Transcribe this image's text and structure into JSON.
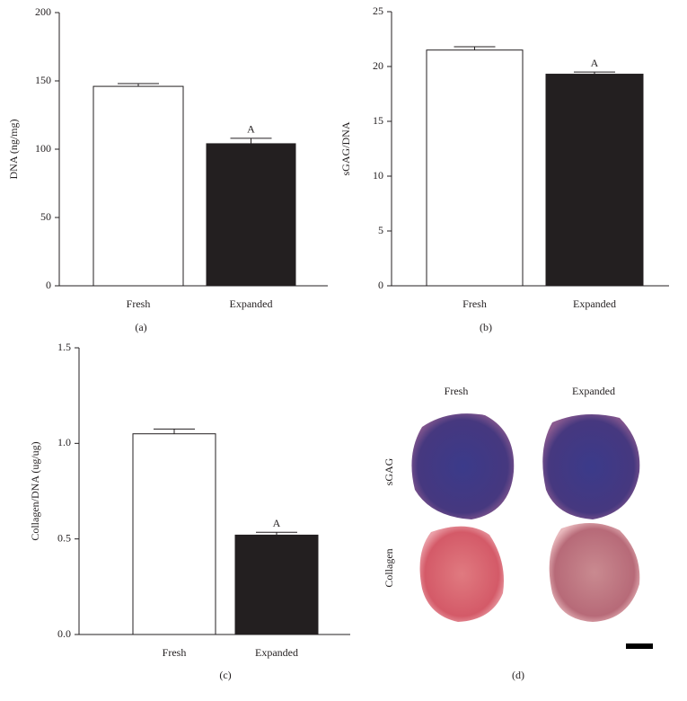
{
  "chart_data": [
    {
      "type": "bar",
      "label": "(a)",
      "y_label": "DNA (ng/mg)",
      "categories": [
        "Fresh",
        "Expanded"
      ],
      "values": [
        146,
        104
      ],
      "errors": [
        2,
        4
      ],
      "annotations": [
        null,
        "A"
      ],
      "colors": [
        "#ffffff",
        "#231f20"
      ],
      "ylim": [
        0,
        200
      ],
      "yticks": [
        0,
        50,
        100,
        150,
        200
      ]
    },
    {
      "type": "bar",
      "label": "(b)",
      "y_label": "sGAG/DNA",
      "categories": [
        "Fresh",
        "Expanded"
      ],
      "values": [
        21.5,
        19.3
      ],
      "errors": [
        0.3,
        0.2
      ],
      "annotations": [
        null,
        "A"
      ],
      "colors": [
        "#ffffff",
        "#231f20"
      ],
      "ylim": [
        0,
        25
      ],
      "yticks": [
        0,
        5,
        10,
        15,
        20,
        25
      ]
    },
    {
      "type": "bar",
      "label": "(c)",
      "y_label": "Collagen/DNA (ug/ug)",
      "categories": [
        "Fresh",
        "Expanded"
      ],
      "values": [
        1.05,
        0.52
      ],
      "errors": [
        0.025,
        0.015
      ],
      "annotations": [
        null,
        "A"
      ],
      "colors": [
        "#ffffff",
        "#231f20"
      ],
      "ylim": [
        0,
        1.5
      ],
      "yticks": [
        {
          "value": 0,
          "label": "0.0"
        },
        {
          "value": 0.5,
          "label": "0.5"
        },
        {
          "value": 1,
          "label": "1.0"
        },
        {
          "value": 1.5,
          "label": "1.5"
        }
      ]
    }
  ],
  "panel_d": {
    "label": "(d)",
    "columns": [
      "Fresh",
      "Expanded"
    ],
    "rows": [
      "sGAG",
      "Collagen"
    ]
  }
}
